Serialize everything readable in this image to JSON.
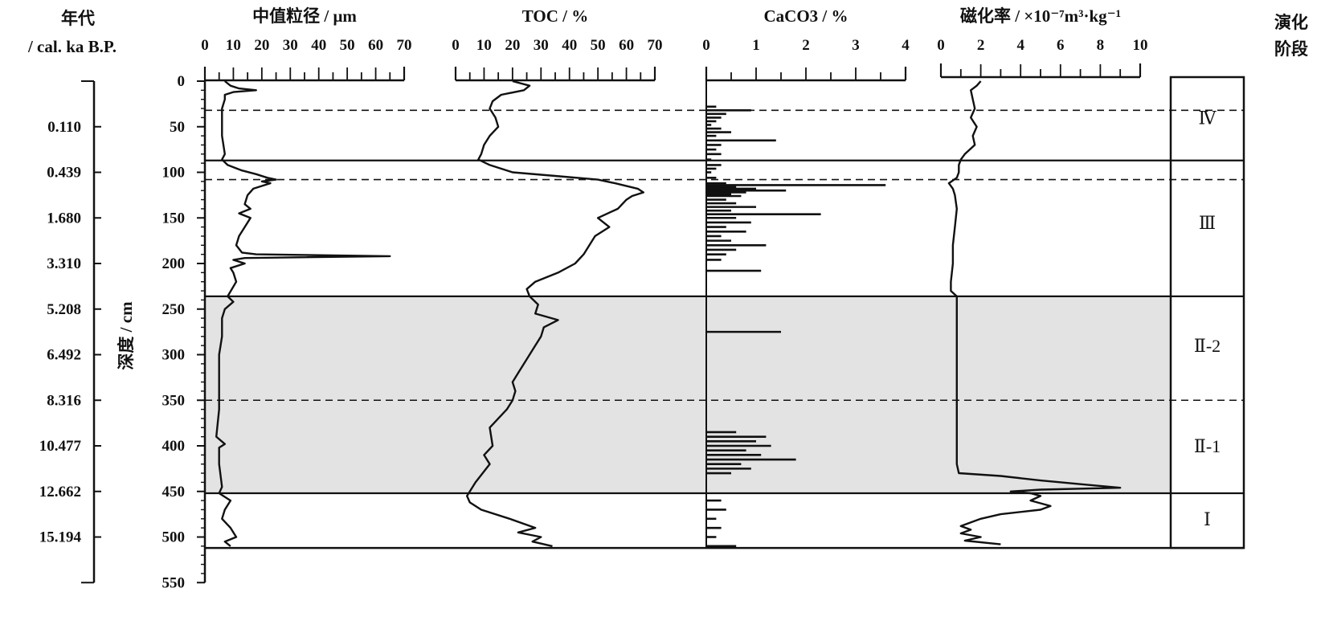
{
  "age_axis": {
    "title_line1": "年代",
    "title_line2": "/ cal. ka B.P.",
    "labels": [
      "0.110",
      "0.439",
      "1.680",
      "3.310",
      "5.208",
      "6.492",
      "8.316",
      "10.477",
      "12.662",
      "15.194"
    ],
    "label_depths": [
      50,
      100,
      150,
      200,
      250,
      300,
      350,
      400,
      450,
      500
    ]
  },
  "depth_axis": {
    "label": "深度 / cm",
    "ticks": [
      0,
      50,
      100,
      150,
      200,
      250,
      300,
      350,
      400,
      450,
      500,
      550
    ],
    "range": [
      0,
      550
    ]
  },
  "stage_column": {
    "title_line1": "演化",
    "title_line2": "阶段",
    "stages": [
      {
        "label": "Ⅳ",
        "label_depth": 40
      },
      {
        "label": "Ⅲ",
        "label_depth": 155
      },
      {
        "label": "Ⅱ-2",
        "label_depth": 290
      },
      {
        "label": "Ⅱ-1",
        "label_depth": 400
      },
      {
        "label": "Ⅰ",
        "label_depth": 480
      }
    ]
  },
  "chart_data": {
    "type": "line",
    "orientation": "vertical-depth-profile",
    "y_axis": {
      "label": "深度 / cm",
      "ylim": [
        0,
        550
      ],
      "inverted": true
    },
    "shaded_interval": {
      "depth": [
        236,
        452
      ],
      "color": "#e3e3e3"
    },
    "boundaries": [
      {
        "depth": 32,
        "style": "dashed"
      },
      {
        "depth": 87,
        "style": "solid"
      },
      {
        "depth": 108,
        "style": "dashed"
      },
      {
        "depth": 236,
        "style": "solid"
      },
      {
        "depth": 350,
        "style": "dashed"
      },
      {
        "depth": 452,
        "style": "solid"
      },
      {
        "depth": 512,
        "style": "solid"
      }
    ],
    "panels": [
      {
        "title": "中值粒径 / μm",
        "xlim": [
          0,
          70
        ],
        "ticks": [
          0,
          10,
          20,
          30,
          40,
          50,
          60,
          70
        ],
        "mode": "line",
        "depth": [
          0,
          5,
          8,
          10,
          12,
          15,
          20,
          30,
          40,
          60,
          80,
          86,
          92,
          98,
          102,
          106,
          108,
          110,
          112,
          118,
          125,
          135,
          140,
          145,
          150,
          160,
          170,
          180,
          188,
          190,
          192,
          194,
          196,
          200,
          205,
          210,
          220,
          236,
          242,
          250,
          260,
          280,
          300,
          330,
          360,
          390,
          398,
          402,
          420,
          445,
          452,
          460,
          470,
          480,
          490,
          500,
          505,
          510
        ],
        "values": [
          7,
          9,
          12,
          18,
          10,
          7,
          7,
          6,
          6,
          6,
          7,
          6,
          8,
          13,
          18,
          22,
          25,
          20,
          23,
          17,
          15,
          14,
          16,
          12,
          16,
          14,
          12,
          11,
          13,
          18,
          65,
          14,
          10,
          14,
          9,
          10,
          11,
          8,
          10,
          7,
          6,
          6,
          5,
          5,
          5,
          4,
          7,
          5,
          5,
          6,
          5,
          9,
          7,
          6,
          9,
          11,
          7,
          9
        ]
      },
      {
        "title": "TOC / %",
        "xlim": [
          0,
          70
        ],
        "ticks": [
          0,
          10,
          20,
          30,
          40,
          50,
          60,
          70
        ],
        "mode": "line",
        "depth": [
          0,
          5,
          10,
          15,
          22,
          30,
          40,
          50,
          60,
          70,
          80,
          86,
          92,
          100,
          104,
          108,
          112,
          118,
          122,
          126,
          130,
          140,
          150,
          160,
          170,
          180,
          190,
          200,
          210,
          220,
          228,
          236,
          245,
          255,
          262,
          270,
          280,
          290,
          300,
          320,
          330,
          340,
          350,
          360,
          380,
          400,
          410,
          420,
          440,
          450,
          455,
          462,
          470,
          480,
          490,
          495,
          500,
          505,
          510
        ],
        "values": [
          20,
          26,
          24,
          16,
          13,
          12,
          14,
          15,
          12,
          10,
          9,
          8,
          12,
          20,
          35,
          50,
          56,
          64,
          66,
          62,
          60,
          57,
          50,
          54,
          49,
          47,
          45,
          42,
          36,
          28,
          25,
          26,
          29,
          28,
          36,
          31,
          30,
          28,
          26,
          22,
          20,
          21,
          20,
          18,
          12,
          13,
          10,
          12,
          7,
          5,
          4,
          5,
          9,
          19,
          28,
          22,
          30,
          27,
          34
        ]
      },
      {
        "title": "CaCO3 / %",
        "xlim": [
          0,
          4
        ],
        "ticks": [
          0,
          1,
          2,
          3,
          4
        ],
        "mode": "spikes",
        "depth": [
          28,
          32,
          36,
          40,
          44,
          48,
          52,
          56,
          60,
          65,
          70,
          75,
          80,
          86,
          92,
          96,
          100,
          106,
          112,
          114,
          116,
          118,
          120,
          122,
          124,
          126,
          130,
          134,
          138,
          142,
          146,
          150,
          155,
          160,
          165,
          170,
          175,
          180,
          185,
          190,
          196,
          208,
          275,
          385,
          390,
          395,
          400,
          405,
          410,
          415,
          420,
          425,
          430,
          460,
          470,
          480,
          490,
          500,
          510
        ],
        "values": [
          0.2,
          0.9,
          0.4,
          0.3,
          0.2,
          0.1,
          0.3,
          0.5,
          0.2,
          1.4,
          0.3,
          0.2,
          0.3,
          0.1,
          0.3,
          0.2,
          0.1,
          0.2,
          0.4,
          3.6,
          0.6,
          1.0,
          1.6,
          0.8,
          0.5,
          0.7,
          0.4,
          0.6,
          1.0,
          0.5,
          2.3,
          0.6,
          0.9,
          0.4,
          0.8,
          0.3,
          0.5,
          1.2,
          0.6,
          0.4,
          0.3,
          1.1,
          1.5,
          0.6,
          1.2,
          1.0,
          1.3,
          0.8,
          1.1,
          1.8,
          0.7,
          0.9,
          0.5,
          0.3,
          0.4,
          0.2,
          0.3,
          0.2,
          0.6
        ]
      },
      {
        "title": "磁化率 / ×10⁻⁷m³·kg⁻¹",
        "xlim": [
          0,
          10
        ],
        "ticks": [
          0,
          2,
          4,
          6,
          8,
          10
        ],
        "mode": "line",
        "depth": [
          0,
          5,
          10,
          20,
          30,
          40,
          50,
          60,
          70,
          80,
          86,
          92,
          100,
          106,
          112,
          118,
          125,
          140,
          160,
          180,
          200,
          220,
          230,
          236,
          250,
          300,
          350,
          400,
          420,
          430,
          433,
          438,
          442,
          446,
          448,
          450,
          452,
          455,
          460,
          466,
          470,
          475,
          480,
          488,
          492,
          496,
          500,
          504,
          508
        ],
        "values": [
          2.0,
          1.8,
          1.5,
          1.6,
          1.7,
          1.5,
          1.8,
          1.6,
          1.7,
          1.2,
          1.0,
          0.9,
          0.9,
          0.8,
          0.4,
          0.6,
          0.7,
          0.8,
          0.7,
          0.6,
          0.6,
          0.5,
          0.5,
          0.8,
          0.8,
          0.8,
          0.8,
          0.8,
          0.8,
          0.9,
          3.0,
          5.0,
          7.0,
          9.0,
          5.0,
          3.5,
          4.5,
          5.0,
          4.5,
          5.5,
          5.0,
          3.0,
          2.0,
          1.0,
          1.5,
          1.0,
          2.0,
          1.2,
          3.0
        ]
      }
    ]
  }
}
